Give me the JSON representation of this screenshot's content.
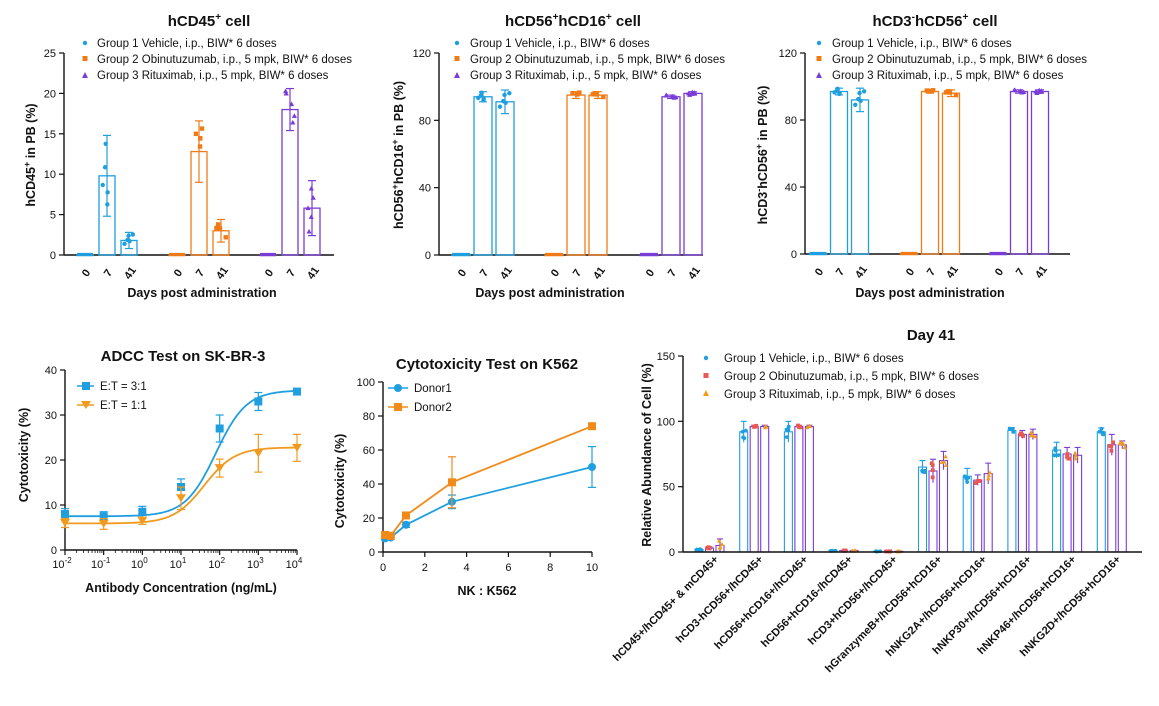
{
  "colors": {
    "g1": "#1f9fe0",
    "g2": "#f07b16",
    "g3": "#7a3cd6",
    "axis": "#111111"
  },
  "legend_groups": [
    "Group 1 Vehicle, i.p., BIW* 6 doses",
    "Group 2 Obinutuzumab, i.p., 5 mpk, BIW* 6 doses",
    "Group 3 Rituximab, i.p., 5 mpk, BIW* 6 doses"
  ],
  "chart_data": [
    {
      "id": "p1",
      "type": "bar",
      "title": "hCD45",
      "title_sup": "+",
      "title_tail": " cell",
      "ylabel": "hCD45+ in PB (%)",
      "xlabel": "Days post administration",
      "ylim": [
        0,
        25
      ],
      "yticks": [
        "0",
        "5",
        "10",
        "15",
        "20",
        "25"
      ],
      "categories": [
        "0",
        "7",
        "41"
      ],
      "series": [
        {
          "name": "Group 1 Vehicle, i.p., BIW* 6 doses",
          "values": [
            0,
            9.8,
            1.8
          ],
          "errors": [
            0,
            5.0,
            1.0
          ]
        },
        {
          "name": "Group 2 Obinutuzumab, i.p., 5 mpk, BIW* 6 doses",
          "values": [
            0,
            12.8,
            3.0
          ],
          "errors": [
            0,
            3.8,
            1.4
          ]
        },
        {
          "name": "Group 3 Rituximab, i.p., 5 mpk, BIW* 6 doses",
          "values": [
            0,
            18.0,
            5.8
          ],
          "errors": [
            0,
            2.6,
            3.4
          ]
        }
      ]
    },
    {
      "id": "p2",
      "type": "bar",
      "title": "hCD56",
      "title_sup": "+",
      "title_tail": "hCD16+ cell",
      "ylabel": "hCD56+hCD16+ in PB (%)",
      "xlabel": "Days post administration",
      "ylim": [
        0,
        120
      ],
      "yticks": [
        "0",
        "40",
        "80",
        "120"
      ],
      "categories": [
        "0",
        "7",
        "41"
      ],
      "series": [
        {
          "name": "Group 1 Vehicle, i.p., BIW* 6 doses",
          "values": [
            0,
            94,
            91
          ],
          "errors": [
            0,
            3,
            7
          ]
        },
        {
          "name": "Group 2 Obinutuzumab, i.p., 5 mpk, BIW* 6 doses",
          "values": [
            0,
            95,
            95
          ],
          "errors": [
            0,
            2,
            2
          ]
        },
        {
          "name": "Group 3 Rituximab, i.p., 5 mpk, BIW* 6 doses",
          "values": [
            0,
            94,
            96
          ],
          "errors": [
            0,
            1,
            1
          ]
        }
      ]
    },
    {
      "id": "p3",
      "type": "bar",
      "title": "hCD3",
      "title_sup": "-",
      "title_tail": "hCD56+ cell",
      "ylabel": "hCD3-hCD56+ in PB (%)",
      "xlabel": "Days post administration",
      "ylim": [
        0,
        120
      ],
      "yticks": [
        "0",
        "40",
        "80",
        "120"
      ],
      "categories": [
        "0",
        "7",
        "41"
      ],
      "series": [
        {
          "name": "Group 1 Vehicle, i.p., BIW* 6 doses",
          "values": [
            0,
            97,
            92
          ],
          "errors": [
            0,
            2,
            7
          ]
        },
        {
          "name": "Group 2 Obinutuzumab, i.p., 5 mpk, BIW* 6 doses",
          "values": [
            0,
            97,
            96
          ],
          "errors": [
            0,
            1,
            2
          ]
        },
        {
          "name": "Group 3 Rituximab, i.p., 5 mpk, BIW* 6 doses",
          "values": [
            0,
            97,
            97
          ],
          "errors": [
            0,
            1,
            1
          ]
        }
      ]
    },
    {
      "id": "p4",
      "type": "line",
      "title": "ADCC Test on SK-BR-3",
      "xlabel": "Antibody Concentration (ng/mL)",
      "ylabel": "Cytotoxicity (%)",
      "xscale": "log",
      "xlim_exp": [
        -2,
        4
      ],
      "ylim": [
        0,
        40
      ],
      "yticks": [
        "0",
        "10",
        "20",
        "30",
        "40"
      ],
      "xtick_exps": [
        "-2",
        "-1",
        "0",
        "1",
        "2",
        "3",
        "4"
      ],
      "series": [
        {
          "name": "E:T = 3:1",
          "marker": "square",
          "color": "#1f9fe0",
          "x": [
            0.01,
            0.1,
            1,
            10,
            100,
            1000,
            10000
          ],
          "y": [
            8,
            7.5,
            8.5,
            14,
            27,
            33,
            35.2
          ],
          "errors": [
            1.2,
            1,
            1.2,
            1.8,
            3,
            2,
            0.5
          ],
          "curve": {
            "bottom": 7.5,
            "top": 35.5,
            "log_ec50": 1.9,
            "hill": 1.1
          }
        },
        {
          "name": "E:T = 1:1",
          "marker": "triangle-down",
          "color": "#f29a1f",
          "x": [
            0.01,
            0.1,
            1,
            10,
            100,
            1000,
            10000
          ],
          "y": [
            6,
            5.8,
            6.5,
            11.5,
            18.2,
            21.5,
            22.7
          ],
          "errors": [
            1,
            1.2,
            0.8,
            2.5,
            2,
            4.2,
            3
          ],
          "curve": {
            "bottom": 5.9,
            "top": 22.8,
            "log_ec50": 1.6,
            "hill": 1.1
          }
        }
      ]
    },
    {
      "id": "p5",
      "type": "line",
      "title": "Cytotoxicity Test on K562",
      "xlabel": "NK : K562",
      "ylabel": "Cytotoxicity (%)",
      "xlim": [
        0,
        10
      ],
      "xticks": [
        "0",
        "2",
        "4",
        "6",
        "8",
        "10"
      ],
      "ylim": [
        0,
        100
      ],
      "yticks": [
        "0",
        "20",
        "40",
        "60",
        "80",
        "100"
      ],
      "series": [
        {
          "name": "Donor1",
          "marker": "circle",
          "color": "#1f9fe0",
          "x": [
            0.1,
            0.37,
            1.1,
            3.3,
            10
          ],
          "y": [
            8,
            8.5,
            16,
            29.5,
            50
          ],
          "errors": [
            1,
            1,
            1.5,
            4,
            12
          ]
        },
        {
          "name": "Donor2",
          "marker": "square",
          "color": "#f28a1a",
          "x": [
            0.1,
            0.37,
            1.1,
            3.3,
            10
          ],
          "y": [
            10,
            9.5,
            21.5,
            41,
            74
          ],
          "errors": [
            1,
            1,
            1,
            15,
            1
          ]
        }
      ]
    },
    {
      "id": "p6",
      "type": "bar",
      "title": "Day 41",
      "ylabel": "Relative Abundance of Cell (%)",
      "ylim": [
        0,
        150
      ],
      "yticks": [
        "0",
        "50",
        "100",
        "150"
      ],
      "categories": [
        "hCD45+/hCD45+ & mCD45+",
        "hCD3-hCD56+/hCD45+",
        "hCD56+hCD16+/hCD45+",
        "hCD56+hCD16-/hCD45+",
        "hCD3+hCD56+/hCD45+",
        "hGranzymeB+/hCD56+hCD16+",
        "hNKG2A+/hCD56+hCD16+",
        "hNKP30+/hCD56+hCD16+",
        "hNKP46+/hCD56+hCD16+",
        "hNKG2D+/hCD56+hCD16+"
      ],
      "series": [
        {
          "name": "Group 1 Vehicle, i.p., BIW* 6 doses",
          "values": [
            2,
            92,
            92,
            1,
            0.5,
            65,
            58,
            93,
            78,
            92
          ],
          "errors": [
            0.5,
            8,
            8,
            0.3,
            0.2,
            5,
            6,
            2,
            6,
            3
          ]
        },
        {
          "name": "Group 2 Obinutuzumab, i.p., 5 mpk, BIW* 6 doses",
          "values": [
            3,
            96,
            96,
            1,
            0.5,
            62,
            55,
            90,
            75,
            82
          ],
          "errors": [
            1,
            1,
            1,
            0.3,
            0.2,
            9,
            4,
            3,
            5,
            8
          ]
        },
        {
          "name": "Group 3 Rituximab, i.p., 5 mpk, BIW* 6 doses",
          "values": [
            5,
            96,
            96,
            1,
            0.5,
            70,
            60,
            90,
            74,
            82
          ],
          "errors": [
            5,
            1,
            1,
            0.3,
            0.2,
            7,
            8,
            4,
            6,
            3
          ]
        }
      ]
    }
  ]
}
